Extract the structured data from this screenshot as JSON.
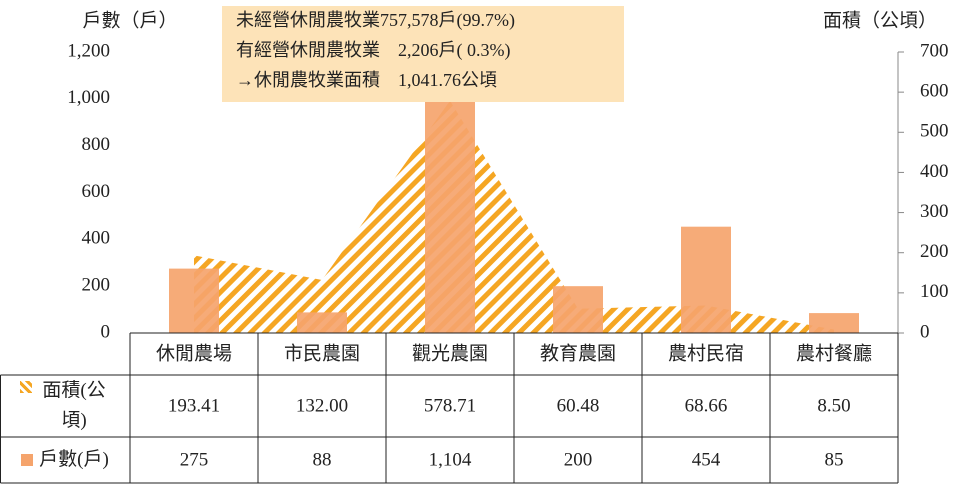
{
  "chart_data": {
    "type": "bar",
    "categories": [
      "休閒農場",
      "市民農園",
      "觀光農園",
      "教育農園",
      "農村民宿",
      "農村餐廳"
    ],
    "series": [
      {
        "name": "面積(公頃)",
        "type": "area",
        "axis": "y2",
        "color": "#f5a623",
        "values": [
          193.41,
          132.0,
          578.71,
          60.48,
          68.66,
          8.5
        ],
        "value_labels": [
          "193.41",
          "132.00",
          "578.71",
          "60.48",
          "68.66",
          "8.50"
        ]
      },
      {
        "name": "戶數(戶)",
        "type": "bar",
        "color": "#f5a46c",
        "values": [
          275,
          88,
          1104,
          200,
          454,
          85
        ],
        "value_labels": [
          "275",
          "88",
          "1,104",
          "200",
          "454",
          "85"
        ]
      }
    ],
    "ylabel": "戶數（戶）",
    "y2label": "面積（公頃）",
    "ylim": [
      0,
      1200
    ],
    "yticks": [
      0,
      200,
      400,
      600,
      800,
      {
        "value": 1000,
        "label": "1,000"
      },
      {
        "value": 1200,
        "label": "1,200"
      }
    ],
    "y2lim": [
      0,
      700
    ],
    "y2ticks": [
      0,
      100,
      200,
      300,
      400,
      500,
      600,
      700
    ],
    "annotations": [
      "未經營休閒農牧業757,578戶(99.7%)",
      "有經營休閒農牧業　2,206戶( 0.3%)",
      "→休閒農牧業面積　1,041.76公頃"
    ]
  }
}
